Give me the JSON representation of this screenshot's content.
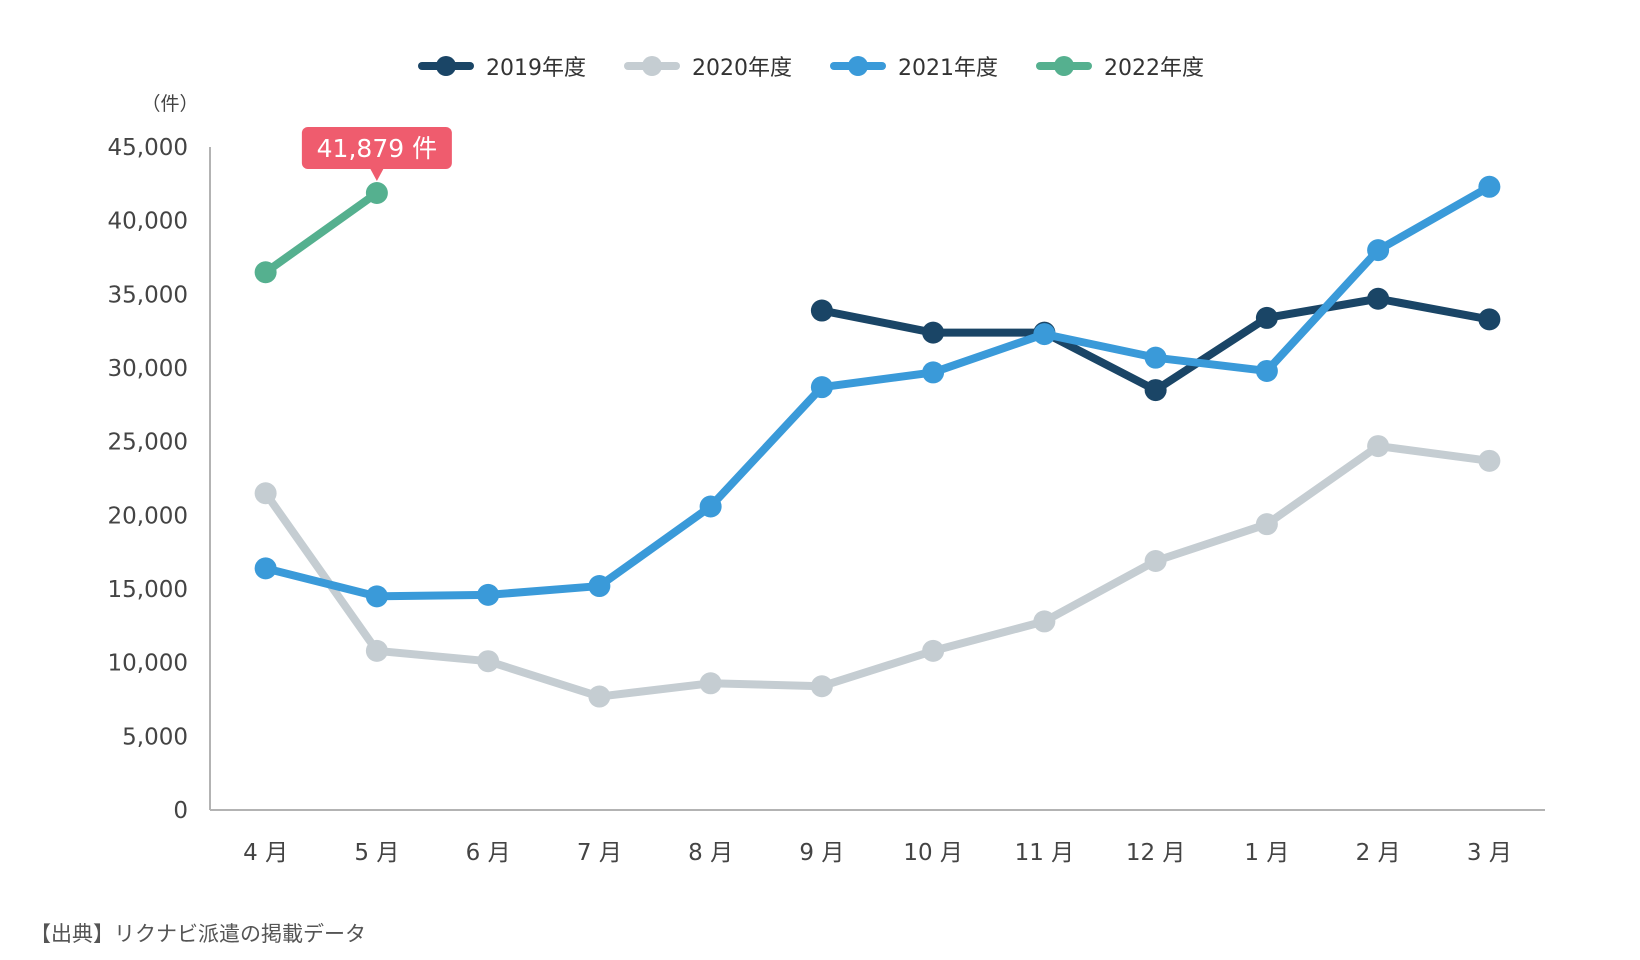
{
  "chart_data": {
    "type": "line",
    "unit_label": "（件）",
    "categories": [
      "4 月",
      "5 月",
      "6 月",
      "7 月",
      "8 月",
      "9 月",
      "10 月",
      "11 月",
      "12 月",
      "1 月",
      "2 月",
      "3 月"
    ],
    "y_ticks": [
      "0",
      "5,000",
      "10,000",
      "15,000",
      "20,000",
      "25,000",
      "30,000",
      "35,000",
      "40,000",
      "45,000"
    ],
    "ylim": [
      0,
      45000
    ],
    "grid": false,
    "legend_position": "top",
    "series": [
      {
        "name": "2019年度",
        "color": "#1a4566",
        "values": [
          null,
          null,
          null,
          null,
          null,
          33900,
          32400,
          32400,
          28500,
          33400,
          34700,
          33300
        ]
      },
      {
        "name": "2020年度",
        "color": "#c5cdd2",
        "values": [
          21500,
          10800,
          10100,
          7700,
          8600,
          8400,
          10800,
          12800,
          16900,
          19400,
          24700,
          23700
        ]
      },
      {
        "name": "2021年度",
        "color": "#3a9ad9",
        "values": [
          16400,
          14500,
          14600,
          15200,
          20600,
          28700,
          29700,
          32300,
          30700,
          29800,
          38000,
          42300
        ]
      },
      {
        "name": "2022年度",
        "color": "#55b08f",
        "values": [
          36500,
          41879,
          null,
          null,
          null,
          null,
          null,
          null,
          null,
          null,
          null,
          null
        ]
      }
    ],
    "annotation": {
      "text": "41,879 件",
      "series_index": 3,
      "point_index": 1,
      "color": "#ef5c6e"
    }
  },
  "source_note": "【出典】リクナビ派遣の掲載データ"
}
